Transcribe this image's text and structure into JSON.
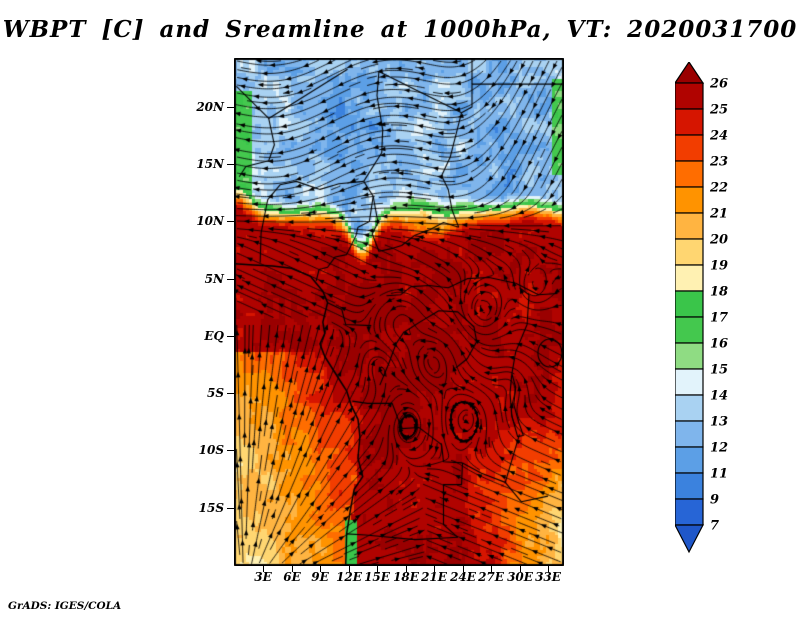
{
  "title": "WBPT [C] and Sreamline at 1000hPa, VT: 2020031700",
  "credit": "GrADS: IGES/COLA",
  "axes": {
    "lat_ticks": [
      {
        "label": "20N",
        "deg": 20
      },
      {
        "label": "15N",
        "deg": 15
      },
      {
        "label": "10N",
        "deg": 10
      },
      {
        "label": "5N",
        "deg": 5
      },
      {
        "label": "EQ",
        "deg": 0
      },
      {
        "label": "5S",
        "deg": -5
      },
      {
        "label": "10S",
        "deg": -10
      },
      {
        "label": "15S",
        "deg": -15
      }
    ],
    "lon_ticks": [
      {
        "label": "3E",
        "deg": 3
      },
      {
        "label": "6E",
        "deg": 6
      },
      {
        "label": "9E",
        "deg": 9
      },
      {
        "label": "12E",
        "deg": 12
      },
      {
        "label": "15E",
        "deg": 15
      },
      {
        "label": "18E",
        "deg": 18
      },
      {
        "label": "21E",
        "deg": 21
      },
      {
        "label": "24E",
        "deg": 24
      },
      {
        "label": "27E",
        "deg": 27
      },
      {
        "label": "30E",
        "deg": 30
      },
      {
        "label": "33E",
        "deg": 33
      }
    ]
  },
  "colorbar": {
    "labels_top_to_bottom": [
      "26",
      "25",
      "24",
      "23",
      "22",
      "21",
      "20",
      "19",
      "18",
      "17",
      "16",
      "15",
      "14",
      "13",
      "12",
      "11",
      "9",
      "7"
    ],
    "above_color": "#9A0000",
    "below_color": "#1F57C9",
    "box_colors_top_to_bottom": [
      "#B00300",
      "#D61500",
      "#F23D00",
      "#FF6D00",
      "#FF9300",
      "#FFB441",
      "#FFD671",
      "#FFF1B2",
      "#3AC54A",
      "#44C84E",
      "#8FDC83",
      "#E2F3FB",
      "#A9D2F2",
      "#7FB5EC",
      "#5C9FE6",
      "#3B82DE",
      "#2765D6"
    ]
  },
  "chart_data": {
    "type": "heatmap",
    "subtype": "filled-contour with streamlines (GrADS)",
    "title": "WBPT [C] and Sreamline at 1000hPa, VT: 2020031700",
    "variable": "Wet-bulb potential temperature",
    "units": "C",
    "pressure_level": "1000hPa",
    "valid_time": "2020031700",
    "xlabel_ticks": [
      "3E",
      "6E",
      "9E",
      "12E",
      "15E",
      "18E",
      "21E",
      "24E",
      "27E",
      "30E",
      "33E"
    ],
    "ylabel_ticks": [
      "20N",
      "15N",
      "10N",
      "5N",
      "EQ",
      "5S",
      "10S",
      "15S"
    ],
    "lon_range_deg": [
      0,
      35
    ],
    "lat_range_deg": [
      -20,
      24
    ],
    "contour_levels": [
      7,
      9,
      11,
      12,
      13,
      14,
      15,
      16,
      17,
      18,
      19,
      20,
      21,
      22,
      23,
      24,
      25,
      26
    ],
    "level_colors_ascending": [
      "#1F57C9",
      "#2765D6",
      "#3B82DE",
      "#5C9FE6",
      "#7FB5EC",
      "#A9D2F2",
      "#E2F3FB",
      "#8FDC83",
      "#44C84E",
      "#3AC54A",
      "#FFF1B2",
      "#FFD671",
      "#FFB441",
      "#FF9300",
      "#FF6D00",
      "#F23D00",
      "#D61500",
      "#B00300",
      "#9A0000"
    ],
    "legend_position": "right vertical colorbar with out-of-range arrows",
    "grid": false,
    "field_regions_read_from_plot": [
      {
        "area": "north of ~11N (Sahara/Sahel)",
        "wbpt_c": "11-15 (blue, pale patches 14-16)"
      },
      {
        "area": "transition band ~8-11N across map",
        "wbpt_c": "16-18 (green), dips to ~5N near 13-14E"
      },
      {
        "area": "far-west strip 0-2E, 12-21N",
        "wbpt_c": "16-17 (green)"
      },
      {
        "area": "equatorial Congo basin core 5N-10S",
        "wbpt_c": "24-26 with patches above 26 (dark red)"
      },
      {
        "area": "southwest Atlantic toward 0E/20S corner",
        "wbpt_c": "23 down to ~18-19 (orange to pale yellow fan)"
      },
      {
        "area": "southeast quadrant 24-35E, 8-17S",
        "wbpt_c": "20-23 (orange/yellow patches)"
      },
      {
        "area": "small coastal spot ~12E,17S",
        "wbpt_c": "~17 (green sliver)"
      }
    ],
    "streamline_pattern_read_from_plot": [
      "northeasterly/northerly flow over Sahara turning into strong easterlies along 8-12N",
      "southerly flow fanning out over the SE Atlantic off Angola, feeding northward into the basin",
      "multiple small cyclonic/anticyclonic eddies within the equatorial Congo basin",
      "southward flow along the eastern edge (25-35E) north of 10N"
    ]
  }
}
